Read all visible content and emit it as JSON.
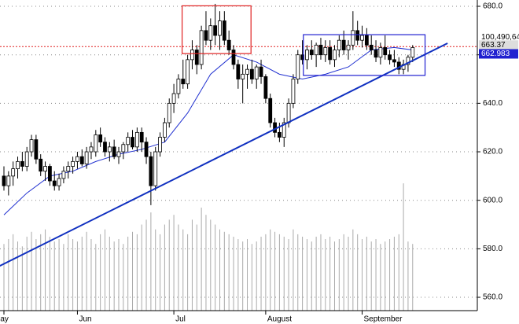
{
  "chart_data": {
    "type": "candlestick",
    "ylim": [
      554.5,
      682.6
    ],
    "yticks": [
      {
        "value": 680,
        "label": "680.0"
      },
      {
        "value": 660,
        "label": "660.0"
      },
      {
        "value": 640,
        "label": "640.0"
      },
      {
        "value": 620,
        "label": "620.0"
      },
      {
        "value": 600,
        "label": "600.0"
      },
      {
        "value": 580,
        "label": "580.0"
      },
      {
        "value": 560,
        "label": "560.0"
      }
    ],
    "grid": true,
    "categories": [
      "May",
      null,
      null,
      null,
      null,
      null,
      null,
      null,
      null,
      null,
      null,
      null,
      null,
      null,
      null,
      null,
      "Jun",
      null,
      null,
      null,
      null,
      null,
      null,
      null,
      null,
      null,
      null,
      null,
      null,
      null,
      null,
      null,
      null,
      null,
      null,
      null,
      null,
      "Jul",
      null,
      null,
      null,
      null,
      null,
      null,
      null,
      null,
      null,
      null,
      null,
      null,
      null,
      null,
      null,
      null,
      null,
      null,
      null,
      "August",
      null,
      null,
      null,
      null,
      null,
      null,
      null,
      null,
      null,
      null,
      null,
      null,
      null,
      null,
      null,
      null,
      null,
      null,
      null,
      null,
      "September",
      null,
      null,
      null,
      null,
      null,
      null,
      null,
      null,
      null,
      null,
      null
    ],
    "ohlc": [
      [
        610,
        614,
        604,
        606
      ],
      [
        606,
        612,
        602,
        610
      ],
      [
        610,
        616,
        606,
        613
      ],
      [
        613,
        618,
        609,
        616
      ],
      [
        616,
        620,
        612,
        614
      ],
      [
        614,
        622,
        612,
        620
      ],
      [
        620,
        627,
        618,
        625
      ],
      [
        625,
        627,
        615,
        617
      ],
      [
        617,
        619,
        610,
        612
      ],
      [
        612,
        616,
        608,
        614
      ],
      [
        614,
        615,
        606,
        608
      ],
      [
        608,
        612,
        604,
        606
      ],
      [
        606,
        611,
        604,
        609
      ],
      [
        609,
        614,
        607,
        612
      ],
      [
        612,
        616,
        609,
        614
      ],
      [
        614,
        618,
        611,
        616
      ],
      [
        616,
        620,
        613,
        618
      ],
      [
        618,
        621,
        614,
        615
      ],
      [
        615,
        622,
        613,
        620
      ],
      [
        620,
        624,
        617,
        622
      ],
      [
        620,
        629,
        618,
        627
      ],
      [
        627,
        630,
        622,
        624
      ],
      [
        624,
        626,
        618,
        620
      ],
      [
        620,
        624,
        616,
        622
      ],
      [
        622,
        625,
        617,
        618
      ],
      [
        618,
        622,
        615,
        620
      ],
      [
        620,
        624,
        617,
        623
      ],
      [
        623,
        628,
        620,
        626
      ],
      [
        626,
        629,
        621,
        622
      ],
      [
        622,
        630,
        620,
        628
      ],
      [
        628,
        630,
        620,
        624
      ],
      [
        624,
        626,
        615,
        618
      ],
      [
        618,
        620,
        598,
        606
      ],
      [
        606,
        622,
        604,
        620
      ],
      [
        620,
        628,
        618,
        626
      ],
      [
        626,
        634,
        624,
        632
      ],
      [
        632,
        642,
        630,
        640
      ],
      [
        640,
        648,
        636,
        644
      ],
      [
        644,
        652,
        642,
        650
      ],
      [
        650,
        658,
        646,
        648
      ],
      [
        648,
        660,
        646,
        658
      ],
      [
        658,
        666,
        654,
        662
      ],
      [
        662,
        664,
        652,
        656
      ],
      [
        656,
        672,
        654,
        670
      ],
      [
        670,
        678,
        664,
        666
      ],
      [
        666,
        675,
        662,
        672
      ],
      [
        672,
        681,
        664,
        668
      ],
      [
        668,
        678,
        662,
        674
      ],
      [
        674,
        678,
        664,
        666
      ],
      [
        666,
        670,
        660,
        662
      ],
      [
        662,
        664,
        654,
        656
      ],
      [
        656,
        658,
        646,
        650
      ],
      [
        650,
        656,
        640,
        652
      ],
      [
        652,
        656,
        646,
        654
      ],
      [
        654,
        658,
        648,
        650
      ],
      [
        650,
        656,
        646,
        655
      ],
      [
        655,
        658,
        648,
        651
      ],
      [
        651,
        652,
        640,
        642
      ],
      [
        642,
        644,
        630,
        632
      ],
      [
        632,
        634,
        626,
        628
      ],
      [
        628,
        632,
        624,
        626
      ],
      [
        626,
        634,
        622,
        632
      ],
      [
        632,
        642,
        630,
        640
      ],
      [
        640,
        652,
        638,
        650
      ],
      [
        650,
        662,
        648,
        660
      ],
      [
        660,
        666,
        656,
        658
      ],
      [
        658,
        664,
        654,
        662
      ],
      [
        662,
        666,
        658,
        660
      ],
      [
        660,
        665,
        655,
        664
      ],
      [
        664,
        667,
        658,
        660
      ],
      [
        660,
        666,
        657,
        663
      ],
      [
        663,
        666,
        656,
        658
      ],
      [
        658,
        664,
        655,
        662
      ],
      [
        662,
        668,
        659,
        666
      ],
      [
        666,
        670,
        660,
        662
      ],
      [
        662,
        666,
        658,
        664
      ],
      [
        664,
        678,
        662,
        670
      ],
      [
        670,
        674,
        664,
        666
      ],
      [
        666,
        672,
        663,
        668
      ],
      [
        668,
        671,
        662,
        664
      ],
      [
        664,
        668,
        660,
        662
      ],
      [
        662,
        666,
        657,
        659
      ],
      [
        659,
        665,
        656,
        663
      ],
      [
        663,
        668,
        658,
        660
      ],
      [
        660,
        662,
        656,
        658
      ],
      [
        658,
        662,
        655,
        657
      ],
      [
        657,
        659,
        652,
        654
      ],
      [
        654,
        658,
        652,
        656
      ],
      [
        656,
        660,
        653,
        659
      ],
      [
        659,
        664,
        657,
        663
      ]
    ],
    "volume": [
      582,
      584,
      586,
      583,
      581,
      585,
      587,
      584,
      586,
      588,
      585,
      583,
      584,
      582,
      586,
      584,
      583,
      585,
      587,
      584,
      582,
      586,
      588,
      585,
      583,
      584,
      582,
      585,
      587,
      586,
      590,
      592,
      595,
      588,
      586,
      590,
      592,
      594,
      590,
      588,
      586,
      592,
      590,
      597,
      594,
      592,
      590,
      588,
      587,
      586,
      585,
      584,
      583,
      584,
      582,
      583,
      585,
      586,
      588,
      587,
      586,
      585,
      584,
      588,
      586,
      585,
      584,
      583,
      585,
      586,
      584,
      585,
      583,
      584,
      586,
      585,
      588,
      586,
      584,
      585,
      583,
      584,
      582,
      583,
      584,
      585,
      586,
      607,
      583,
      582
    ],
    "ma": {
      "x": [
        0,
        5,
        10,
        15,
        20,
        25,
        30,
        35,
        40,
        45,
        50,
        55,
        60,
        65,
        70,
        75,
        80,
        85,
        89
      ],
      "values": [
        594,
        603,
        610,
        612,
        616,
        619,
        621,
        624,
        636,
        652,
        660,
        657,
        652,
        650,
        652,
        655,
        662,
        663,
        662
      ]
    },
    "trendline": {
      "x": [
        -0.9,
        96.6
      ],
      "values": [
        572.96,
        664.76
      ]
    },
    "reference_line": {
      "value": 663.37,
      "color": "#e02020"
    },
    "boxes": [
      {
        "x": [
          38.8,
          53.8
        ],
        "values": [
          680.2,
          660.5
        ],
        "color": "#e02020"
      },
      {
        "x": [
          65.2,
          91.7
        ],
        "values": [
          668.3,
          651.5
        ],
        "color": "#2020d0"
      }
    ],
    "volume_label": "100,490,64",
    "price_labels": [
      {
        "value": 663.37,
        "label": "663.37"
      },
      {
        "value": 662.983,
        "label": "662.983"
      }
    ]
  }
}
